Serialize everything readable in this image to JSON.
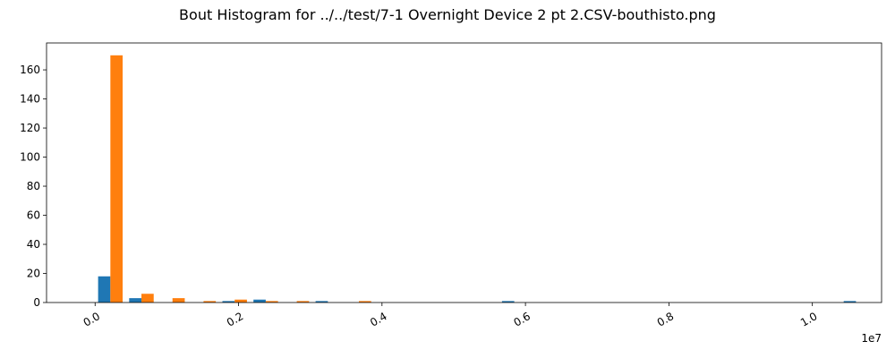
{
  "chart_data": {
    "type": "bar",
    "title": "Bout Histogram for ../../test/7-1 Overnight Device 2 pt 2.CSV-bouthisto.png",
    "xlabel": "",
    "ylabel": "",
    "x_offset_label": "1e7",
    "xlim": [
      -0.0677,
      1.0965
    ],
    "ylim": [
      0,
      178.5
    ],
    "x_ticks": [
      0.0,
      0.2,
      0.4,
      0.6,
      0.8,
      1.0
    ],
    "x_tick_labels": [
      "0.0",
      "0.2",
      "0.4",
      "0.6",
      "0.8",
      "1.0"
    ],
    "y_ticks": [
      0,
      20,
      40,
      60,
      80,
      100,
      120,
      140,
      160
    ],
    "y_tick_labels": [
      "0",
      "20",
      "40",
      "60",
      "80",
      "100",
      "120",
      "140",
      "160"
    ],
    "grid": false,
    "series": [
      {
        "color": "#1f77b4",
        "bins": [
          {
            "x0": 0.0042,
            "x1": 0.0213,
            "value": 18
          },
          {
            "x0": 0.0475,
            "x1": 0.0646,
            "value": 3
          },
          {
            "x0": 0.1775,
            "x1": 0.1946,
            "value": 1
          },
          {
            "x0": 0.2208,
            "x1": 0.2379,
            "value": 2
          },
          {
            "x0": 0.3074,
            "x1": 0.3245,
            "value": 1
          },
          {
            "x0": 0.5673,
            "x1": 0.5844,
            "value": 1
          },
          {
            "x0": 1.0437,
            "x1": 1.0608,
            "value": 1
          }
        ]
      },
      {
        "color": "#ff7f0e",
        "bins": [
          {
            "x0": 0.0213,
            "x1": 0.0384,
            "value": 170
          },
          {
            "x0": 0.0646,
            "x1": 0.0817,
            "value": 6
          },
          {
            "x0": 0.1079,
            "x1": 0.125,
            "value": 3
          },
          {
            "x0": 0.1512,
            "x1": 0.1683,
            "value": 1
          },
          {
            "x0": 0.1946,
            "x1": 0.2117,
            "value": 2
          },
          {
            "x0": 0.2379,
            "x1": 0.255,
            "value": 1
          },
          {
            "x0": 0.2812,
            "x1": 0.2983,
            "value": 1
          },
          {
            "x0": 0.3678,
            "x1": 0.3849,
            "value": 1
          }
        ]
      }
    ]
  }
}
